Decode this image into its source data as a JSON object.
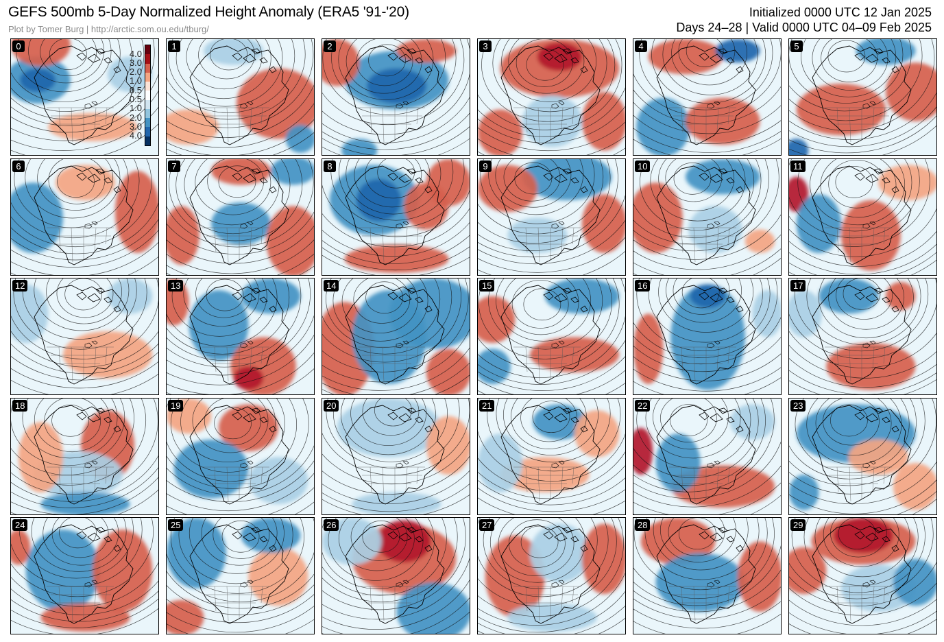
{
  "header": {
    "title": "GEFS 500mb 5-Day Normalized Height Anomaly (ERA5 '91-'20)",
    "credit": "Plot by Tomer Burg | http://arctic.som.ou.edu/tburg/",
    "initialized": "Initialized 0000 UTC 12 Jan 2025",
    "valid": "Days 24–28 | Valid 0000 UTC 04–09 Feb 2025"
  },
  "colorbar": {
    "ticks": [
      "4.0",
      "3.0",
      "2.0",
      "1.0",
      "0.5",
      "0.5",
      "1.0",
      "2.0",
      "3.0",
      "4.0"
    ],
    "colors": [
      "#67000d",
      "#a50f15",
      "#d6604d",
      "#f4a582",
      "#fbe3d6",
      "#ffffff",
      "#d1e5f0",
      "#92c5de",
      "#4393c3",
      "#2166ac",
      "#053061"
    ]
  },
  "colors": {
    "strong_positive": "#b2182b",
    "positive": "#d6604d",
    "weak_positive": "#f4a582",
    "weak_negative": "#a9cfe5",
    "negative": "#4393c3",
    "strong_negative": "#2166ac",
    "background": "#eaf6fb"
  },
  "members": [
    {
      "label": "0",
      "anoms": [
        [
          0.18,
          0.35,
          0.22,
          0.2,
          "negative"
        ],
        [
          0.18,
          0.35,
          0.12,
          0.1,
          "strong_negative"
        ],
        [
          0.2,
          0.05,
          0.2,
          0.18,
          "positive"
        ],
        [
          0.55,
          0.75,
          0.3,
          0.12,
          "weak_positive"
        ],
        [
          0.8,
          0.3,
          0.15,
          0.15,
          "weak_negative"
        ]
      ]
    },
    {
      "label": "1",
      "anoms": [
        [
          0.75,
          0.55,
          0.28,
          0.3,
          "positive"
        ],
        [
          0.15,
          0.75,
          0.2,
          0.15,
          "weak_positive"
        ],
        [
          0.45,
          0.1,
          0.2,
          0.12,
          "weak_negative"
        ],
        [
          0.9,
          0.85,
          0.1,
          0.12,
          "negative"
        ]
      ]
    },
    {
      "label": "2",
      "anoms": [
        [
          0.5,
          0.35,
          0.35,
          0.25,
          "negative"
        ],
        [
          0.5,
          0.4,
          0.2,
          0.15,
          "strong_negative"
        ],
        [
          0.1,
          0.2,
          0.15,
          0.2,
          "positive"
        ],
        [
          0.7,
          0.1,
          0.2,
          0.1,
          "positive"
        ],
        [
          0.25,
          0.95,
          0.12,
          0.1,
          "negative"
        ]
      ]
    },
    {
      "label": "3",
      "anoms": [
        [
          0.55,
          0.25,
          0.4,
          0.25,
          "positive"
        ],
        [
          0.55,
          0.15,
          0.15,
          0.12,
          "strong_positive"
        ],
        [
          0.5,
          0.7,
          0.2,
          0.22,
          "weak_negative"
        ],
        [
          0.85,
          0.7,
          0.15,
          0.25,
          "positive"
        ],
        [
          0.15,
          0.8,
          0.15,
          0.2,
          "positive"
        ]
      ]
    },
    {
      "label": "4",
      "anoms": [
        [
          0.2,
          0.75,
          0.18,
          0.25,
          "negative"
        ],
        [
          0.6,
          0.7,
          0.25,
          0.2,
          "positive"
        ],
        [
          0.35,
          0.15,
          0.25,
          0.15,
          "positive"
        ],
        [
          0.7,
          0.1,
          0.15,
          0.1,
          "strong_negative"
        ]
      ]
    },
    {
      "label": "5",
      "anoms": [
        [
          0.35,
          0.6,
          0.3,
          0.22,
          "positive"
        ],
        [
          0.85,
          0.45,
          0.2,
          0.25,
          "positive"
        ],
        [
          0.05,
          0.95,
          0.08,
          0.1,
          "strong_negative"
        ],
        [
          0.65,
          0.1,
          0.2,
          0.12,
          "negative"
        ]
      ]
    },
    {
      "label": "6",
      "anoms": [
        [
          0.15,
          0.5,
          0.2,
          0.3,
          "negative"
        ],
        [
          0.85,
          0.45,
          0.15,
          0.35,
          "positive"
        ],
        [
          0.5,
          0.2,
          0.2,
          0.15,
          "weak_positive"
        ]
      ]
    },
    {
      "label": "7",
      "anoms": [
        [
          0.1,
          0.65,
          0.12,
          0.25,
          "positive"
        ],
        [
          0.5,
          0.55,
          0.2,
          0.18,
          "negative"
        ],
        [
          0.85,
          0.7,
          0.18,
          0.3,
          "positive"
        ],
        [
          0.5,
          0.1,
          0.2,
          0.12,
          "positive"
        ],
        [
          0.85,
          0.1,
          0.15,
          0.12,
          "negative"
        ]
      ]
    },
    {
      "label": "8",
      "anoms": [
        [
          0.35,
          0.35,
          0.3,
          0.3,
          "negative"
        ],
        [
          0.38,
          0.35,
          0.15,
          0.18,
          "strong_negative"
        ],
        [
          0.7,
          0.4,
          0.15,
          0.2,
          "positive"
        ],
        [
          0.5,
          0.85,
          0.35,
          0.12,
          "positive"
        ],
        [
          0.85,
          0.2,
          0.15,
          0.2,
          "positive"
        ]
      ]
    },
    {
      "label": "9",
      "anoms": [
        [
          0.6,
          0.15,
          0.3,
          0.2,
          "negative"
        ],
        [
          0.85,
          0.55,
          0.15,
          0.25,
          "positive"
        ],
        [
          0.2,
          0.25,
          0.2,
          0.2,
          "positive"
        ],
        [
          0.4,
          0.65,
          0.2,
          0.15,
          "weak_negative"
        ]
      ]
    },
    {
      "label": "10",
      "anoms": [
        [
          0.15,
          0.5,
          0.18,
          0.3,
          "positive"
        ],
        [
          0.55,
          0.6,
          0.18,
          0.2,
          "weak_negative"
        ],
        [
          0.6,
          0.15,
          0.25,
          0.15,
          "negative"
        ],
        [
          0.85,
          0.7,
          0.1,
          0.1,
          "weak_positive"
        ]
      ]
    },
    {
      "label": "11",
      "anoms": [
        [
          0.05,
          0.3,
          0.08,
          0.15,
          "strong_positive"
        ],
        [
          0.2,
          0.55,
          0.15,
          0.25,
          "negative"
        ],
        [
          0.55,
          0.65,
          0.2,
          0.3,
          "positive"
        ],
        [
          0.8,
          0.2,
          0.2,
          0.15,
          "weak_positive"
        ]
      ]
    },
    {
      "label": "12",
      "anoms": [
        [
          0.1,
          0.3,
          0.15,
          0.25,
          "weak_negative"
        ],
        [
          0.65,
          0.65,
          0.3,
          0.2,
          "weak_positive"
        ],
        [
          0.8,
          0.15,
          0.15,
          0.15,
          "weak_negative"
        ]
      ]
    },
    {
      "label": "13",
      "anoms": [
        [
          0.05,
          0.2,
          0.1,
          0.2,
          "positive"
        ],
        [
          0.35,
          0.4,
          0.2,
          0.3,
          "negative"
        ],
        [
          0.65,
          0.75,
          0.22,
          0.25,
          "positive"
        ],
        [
          0.55,
          0.85,
          0.1,
          0.1,
          "strong_positive"
        ],
        [
          0.7,
          0.15,
          0.2,
          0.15,
          "negative"
        ]
      ]
    },
    {
      "label": "14",
      "anoms": [
        [
          0.15,
          0.6,
          0.2,
          0.4,
          "positive"
        ],
        [
          0.45,
          0.5,
          0.25,
          0.4,
          "negative"
        ],
        [
          0.75,
          0.3,
          0.3,
          0.3,
          "negative"
        ],
        [
          0.85,
          0.8,
          0.15,
          0.2,
          "positive"
        ]
      ]
    },
    {
      "label": "15",
      "anoms": [
        [
          0.1,
          0.35,
          0.15,
          0.2,
          "positive"
        ],
        [
          0.1,
          0.75,
          0.12,
          0.15,
          "negative"
        ],
        [
          0.65,
          0.65,
          0.3,
          0.15,
          "positive"
        ],
        [
          0.7,
          0.15,
          0.25,
          0.15,
          "negative"
        ]
      ]
    },
    {
      "label": "16",
      "anoms": [
        [
          0.5,
          0.5,
          0.25,
          0.45,
          "negative"
        ],
        [
          0.5,
          0.15,
          0.12,
          0.1,
          "strong_negative"
        ],
        [
          0.1,
          0.6,
          0.1,
          0.3,
          "positive"
        ],
        [
          0.9,
          0.3,
          0.1,
          0.2,
          "weak_negative"
        ]
      ]
    },
    {
      "label": "17",
      "anoms": [
        [
          0.55,
          0.75,
          0.3,
          0.2,
          "positive"
        ],
        [
          0.4,
          0.15,
          0.2,
          0.15,
          "negative"
        ],
        [
          0.75,
          0.15,
          0.1,
          0.12,
          "positive"
        ],
        [
          0.1,
          0.3,
          0.12,
          0.2,
          "weak_negative"
        ]
      ]
    },
    {
      "label": "18",
      "anoms": [
        [
          0.65,
          0.4,
          0.18,
          0.3,
          "positive"
        ],
        [
          0.45,
          0.65,
          0.3,
          0.2,
          "weak_negative"
        ],
        [
          0.2,
          0.5,
          0.15,
          0.3,
          "weak_positive"
        ],
        [
          0.5,
          0.9,
          0.3,
          0.1,
          "negative"
        ]
      ]
    },
    {
      "label": "19",
      "anoms": [
        [
          0.55,
          0.25,
          0.2,
          0.2,
          "positive"
        ],
        [
          0.3,
          0.6,
          0.25,
          0.25,
          "negative"
        ],
        [
          0.75,
          0.7,
          0.2,
          0.2,
          "weak_negative"
        ],
        [
          0.15,
          0.15,
          0.15,
          0.15,
          "weak_positive"
        ]
      ]
    },
    {
      "label": "20",
      "anoms": [
        [
          0.45,
          0.25,
          0.35,
          0.25,
          "weak_negative"
        ],
        [
          0.85,
          0.4,
          0.15,
          0.25,
          "weak_positive"
        ],
        [
          0.5,
          0.9,
          0.3,
          0.1,
          "weak_negative"
        ]
      ]
    },
    {
      "label": "21",
      "anoms": [
        [
          0.55,
          0.2,
          0.18,
          0.15,
          "negative"
        ],
        [
          0.45,
          0.65,
          0.3,
          0.15,
          "weak_positive"
        ],
        [
          0.15,
          0.55,
          0.15,
          0.25,
          "weak_negative"
        ],
        [
          0.8,
          0.3,
          0.15,
          0.2,
          "weak_positive"
        ]
      ]
    },
    {
      "label": "22",
      "anoms": [
        [
          0.05,
          0.45,
          0.08,
          0.2,
          "strong_positive"
        ],
        [
          0.6,
          0.75,
          0.35,
          0.18,
          "positive"
        ],
        [
          0.3,
          0.55,
          0.15,
          0.25,
          "negative"
        ],
        [
          0.8,
          0.2,
          0.15,
          0.15,
          "weak_negative"
        ]
      ]
    },
    {
      "label": "23",
      "anoms": [
        [
          0.45,
          0.3,
          0.4,
          0.25,
          "negative"
        ],
        [
          0.1,
          0.8,
          0.1,
          0.15,
          "negative"
        ],
        [
          0.85,
          0.75,
          0.15,
          0.2,
          "weak_positive"
        ],
        [
          0.6,
          0.5,
          0.2,
          0.15,
          "weak_positive"
        ]
      ]
    },
    {
      "label": "24",
      "anoms": [
        [
          0.05,
          0.25,
          0.08,
          0.15,
          "positive"
        ],
        [
          0.35,
          0.45,
          0.25,
          0.35,
          "negative"
        ],
        [
          0.75,
          0.45,
          0.2,
          0.35,
          "positive"
        ],
        [
          0.5,
          0.85,
          0.3,
          0.12,
          "positive"
        ]
      ]
    },
    {
      "label": "25",
      "anoms": [
        [
          0.2,
          0.3,
          0.2,
          0.3,
          "negative"
        ],
        [
          0.75,
          0.5,
          0.2,
          0.25,
          "weak_positive"
        ],
        [
          0.1,
          0.85,
          0.15,
          0.15,
          "positive"
        ],
        [
          0.7,
          0.15,
          0.2,
          0.15,
          "negative"
        ]
      ]
    },
    {
      "label": "26",
      "anoms": [
        [
          0.55,
          0.35,
          0.35,
          0.3,
          "positive"
        ],
        [
          0.55,
          0.2,
          0.18,
          0.18,
          "strong_positive"
        ],
        [
          0.75,
          0.8,
          0.25,
          0.25,
          "negative"
        ],
        [
          0.2,
          0.2,
          0.2,
          0.2,
          "weak_negative"
        ]
      ]
    },
    {
      "label": "27",
      "anoms": [
        [
          0.25,
          0.5,
          0.2,
          0.35,
          "positive"
        ],
        [
          0.55,
          0.3,
          0.2,
          0.25,
          "weak_negative"
        ],
        [
          0.85,
          0.35,
          0.15,
          0.3,
          "positive"
        ],
        [
          0.5,
          0.85,
          0.3,
          0.12,
          "weak_negative"
        ]
      ]
    },
    {
      "label": "28",
      "anoms": [
        [
          0.3,
          0.2,
          0.25,
          0.2,
          "positive"
        ],
        [
          0.45,
          0.55,
          0.3,
          0.25,
          "negative"
        ],
        [
          0.85,
          0.5,
          0.15,
          0.3,
          "positive"
        ]
      ]
    },
    {
      "label": "29",
      "anoms": [
        [
          0.5,
          0.2,
          0.35,
          0.2,
          "positive"
        ],
        [
          0.5,
          0.15,
          0.2,
          0.15,
          "strong_positive"
        ],
        [
          0.1,
          0.45,
          0.15,
          0.2,
          "positive"
        ],
        [
          0.6,
          0.6,
          0.25,
          0.2,
          "weak_negative"
        ],
        [
          0.85,
          0.55,
          0.15,
          0.2,
          "negative"
        ]
      ]
    }
  ]
}
